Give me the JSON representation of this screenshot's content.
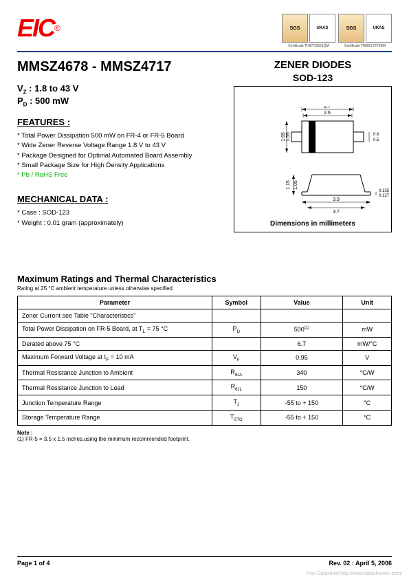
{
  "logo": {
    "text": "EIC",
    "reg": "®"
  },
  "certs": [
    {
      "sgs": "SGS",
      "ukas": "UKAS",
      "label": "Certificate  TH97/10561QM"
    },
    {
      "sgs": "SGS",
      "ukas": "UKAS",
      "label": "Certificate  TW00/17270EM"
    }
  ],
  "title": "MMSZ4678 - MMSZ4717",
  "specs": {
    "vz_label": "V",
    "vz_sub": "Z",
    "vz_val": " : 1.8 to 43 V",
    "pd_label": "P",
    "pd_sub": "D",
    "pd_val": " : 500 mW"
  },
  "features": {
    "head": "FEATURES :",
    "items": [
      "* Total Power Dissipation 500 mW on FR-4 or FR-5 Board",
      "* Wide Zener Reverse Voltage Range 1.8 V to 43 V",
      "* Package Designed for Optimal Automated Board Assembly",
      "* Small Package Size for High Density Applications"
    ],
    "rohs": "* Pb / RoHS Free"
  },
  "mechanical": {
    "head": "MECHANICAL  DATA :",
    "items": [
      "*  Case : SOD-123",
      "*  Weight : 0.01  gram (approximately)"
    ]
  },
  "zener_title": "ZENER DIODES",
  "pkg_title": "SOD-123",
  "dim_label": "Dimensions in millimeters",
  "pkg": {
    "top": {
      "w_out": "2.7",
      "w_in": "2.6",
      "h_out": "1.65",
      "h_in": "1.55",
      "lead_w_out": "0.6",
      "lead_w_in": "0.5"
    },
    "side": {
      "h_out": "1.15",
      "h_in": "1.05",
      "w_out": "3.9",
      "w_in": "3.7",
      "lead_t_out": "0.135",
      "lead_t_in": "0.127"
    }
  },
  "ratings": {
    "title": "Maximum Ratings and Thermal Characteristics",
    "sub": "Rating at 25 °C ambient temperature unless otherwise specified",
    "headers": [
      "Parameter",
      "Symbol",
      "Value",
      "Unit"
    ],
    "rows": [
      {
        "param": "Zener Current see Table \"Characteristics\"",
        "sym": "",
        "val": "",
        "unit": ""
      },
      {
        "param": "Total Power Dissipation on FR-5 Board, at T",
        "param_sub": "L",
        "param_tail": " = 75 °C",
        "sym": "P",
        "sym_sub": "D",
        "val": "500",
        "val_sup": "(1)",
        "unit": "mW"
      },
      {
        "param": "Derated above  75 °C",
        "sym": "",
        "val": "6.7",
        "unit": "mW/°C"
      },
      {
        "param": "  Maximum Forward Voltage at I",
        "param_sub": "F",
        "param_tail": " = 10 mA",
        "sym": "V",
        "sym_sub": "F",
        "val": "0.95",
        "unit": "V"
      },
      {
        "param": "Thermal Resistance Junction to Ambient",
        "sym": "R",
        "sym_sub": "θJA",
        "val": "340",
        "unit": "°C/W"
      },
      {
        "param": "Thermal Resistance Junction to Lead",
        "sym": "R",
        "sym_sub": "θJL",
        "val": "150",
        "unit": "°C/W"
      },
      {
        "param": "Junction Temperature Range",
        "sym": "T",
        "sym_sub": "J",
        "val": "-55 to + 150",
        "unit": "°C"
      },
      {
        "param": "Storage Temperature Range",
        "sym": "T",
        "sym_sub": "STG",
        "val": "-55 to + 150",
        "unit": "°C"
      }
    ]
  },
  "note": {
    "head": "Note :",
    "body": "    (1) FR-5 = 3.5 x 1.5 inches,using the minimum recommended footprint."
  },
  "footer": {
    "page": "Page 1 of 4",
    "rev": "Rev. 02 : April 5, 2006"
  },
  "watermark": "Free Datasheet http://www.datasheet4u.com/"
}
